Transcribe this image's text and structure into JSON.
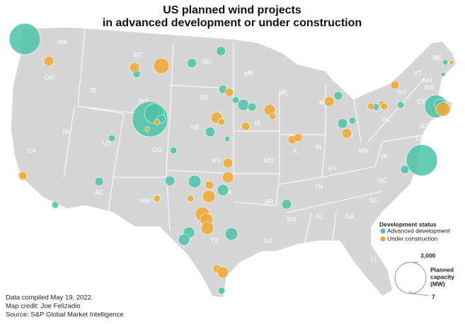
{
  "title": [
    "US planned wind projects",
    "in advanced development or under construction"
  ],
  "states": [
    "WA",
    "OR",
    "ID",
    "MT",
    "WY",
    "ND",
    "SD",
    "NE",
    "MN",
    "WI",
    "MI",
    "IA",
    "IL",
    "IN",
    "OH",
    "PA",
    "NY",
    "VT",
    "NH",
    "ME",
    "MA",
    "CT",
    "NJ",
    "DE",
    "WV",
    "VA",
    "KY",
    "TN",
    "NC",
    "SC",
    "GA",
    "AL",
    "MS",
    "LA",
    "AR",
    "MO",
    "KS",
    "OK",
    "TX",
    "NM",
    "AZ",
    "UT",
    "CO",
    "NV",
    "CA",
    "FL"
  ],
  "legend": {
    "title": "Development status",
    "items": [
      {
        "label": "Advanced development",
        "color": "#4cc3a8",
        "capacities": [
          3000,
          190,
          270,
          270,
          220,
          150,
          400,
          220,
          3900,
          1200,
          220,
          300,
          100,
          150,
          150,
          500,
          300,
          220,
          400,
          400,
          400,
          500,
          150,
          150,
          300,
          220,
          300,
          150,
          150,
          150,
          3000,
          220,
          1600,
          400,
          100,
          60
        ]
      },
      {
        "label": "Under construction",
        "color": "#f0a830",
        "capacities": [
          300,
          300,
          750,
          220,
          400,
          150,
          100,
          60,
          400,
          150,
          220,
          300,
          400,
          220,
          500,
          150,
          620,
          500,
          500,
          220,
          400,
          220,
          150,
          220,
          220,
          300,
          300,
          150,
          150,
          150,
          220,
          620,
          60
        ]
      }
    ]
  },
  "size_legend": {
    "max": {
      "value": 3000,
      "label": "3,000"
    },
    "min": 7,
    "label": [
      "Planned",
      "capacity",
      "(MW)"
    ]
  },
  "notes": [
    "Data compiled May 19, 2022.",
    "Map credit: Joe Felizadio",
    "Source: S&P Global Market Intelligence"
  ]
}
